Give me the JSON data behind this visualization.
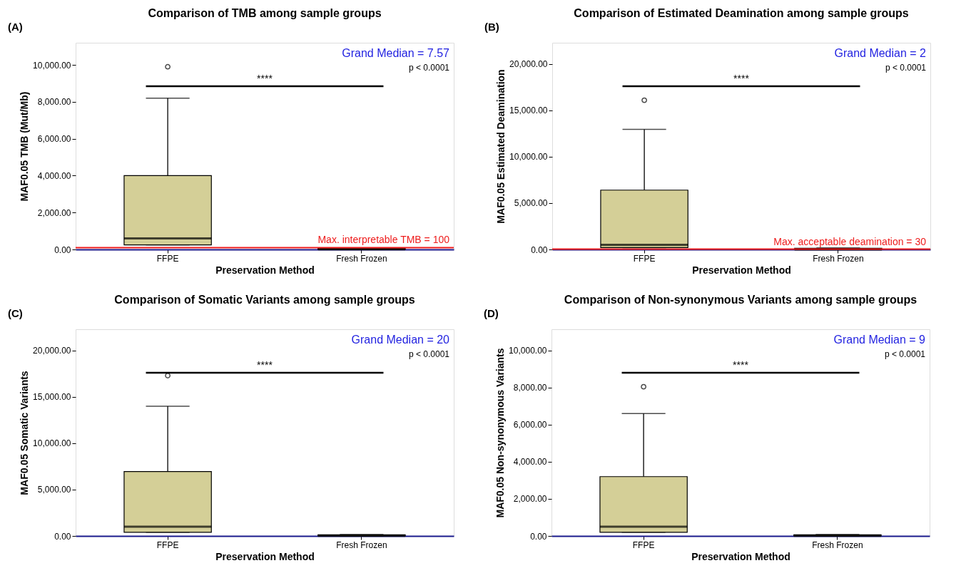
{
  "chart_data": [
    {
      "type": "box",
      "title": "Comparison of TMB among sample groups",
      "xlabel": "Preservation Method",
      "ylabel": "MAF0.05 TMB (Mut/Mb)",
      "categories": [
        "FFPE",
        "Fresh Frozen"
      ],
      "color": "#d4cf97",
      "boxes": [
        {
          "low": 250,
          "q1": 250,
          "median": 600,
          "q3": 4000,
          "high": 8200,
          "outliers": [
            9900
          ]
        },
        {
          "low": 0,
          "q1": 0,
          "median": 5,
          "q3": 60,
          "high": 80
        }
      ],
      "ylim": [
        0,
        11200
      ],
      "yticks": [
        {
          "value": 0,
          "label": "0.00"
        },
        {
          "value": 2000,
          "label": "2,000.00"
        },
        {
          "value": 4000,
          "label": "4,000.00"
        },
        {
          "value": 6000,
          "label": "6,000.00"
        },
        {
          "value": 8000,
          "label": "8,000.00"
        },
        {
          "value": 10000,
          "label": "10,000.00"
        }
      ],
      "ref_lines": [
        {
          "axis": "y",
          "value": 100,
          "label": "Max. interpretable TMB = 100",
          "color": "#ee1c1c"
        }
      ],
      "annotations": [
        "(A)",
        "Grand Median = 7.57",
        "p < 0.0001",
        "****"
      ]
    },
    {
      "type": "box",
      "title": "Comparison of Estimated Deamination among sample groups",
      "xlabel": "Preservation Method",
      "ylabel": "MAF0.05 Estimated Deamination",
      "categories": [
        "FFPE",
        "Fresh Frozen"
      ],
      "color": "#d4cf97",
      "boxes": [
        {
          "low": 200,
          "q1": 200,
          "median": 500,
          "q3": 6400,
          "high": 12950,
          "outliers": [
            16100
          ]
        },
        {
          "low": 0,
          "q1": 0,
          "median": 2,
          "q3": 120,
          "high": 150
        }
      ],
      "ylim": [
        0,
        22300
      ],
      "yticks": [
        {
          "value": 0,
          "label": "0.00"
        },
        {
          "value": 5000,
          "label": "5,000.00"
        },
        {
          "value": 10000,
          "label": "10,000.00"
        },
        {
          "value": 15000,
          "label": "15,000.00"
        },
        {
          "value": 20000,
          "label": "20,000.00"
        }
      ],
      "ref_lines": [
        {
          "axis": "y",
          "value": 30,
          "label": "Max. acceptable deamination = 30",
          "color": "#ee1c1c"
        }
      ],
      "annotations": [
        "(B)",
        "Grand Median = 2",
        "p < 0.0001",
        "****"
      ]
    },
    {
      "type": "box",
      "title": "Comparison of Somatic Variants among sample groups",
      "xlabel": "Preservation Method",
      "ylabel": "MAF0.05 Somatic Variants",
      "categories": [
        "FFPE",
        "Fresh Frozen"
      ],
      "color": "#d4cf97",
      "boxes": [
        {
          "low": 400,
          "q1": 400,
          "median": 1000,
          "q3": 6950,
          "high": 14000,
          "outliers": [
            17300
          ]
        },
        {
          "low": 0,
          "q1": 0,
          "median": 15,
          "q3": 120,
          "high": 150
        }
      ],
      "ylim": [
        0,
        22300
      ],
      "yticks": [
        {
          "value": 0,
          "label": "0.00"
        },
        {
          "value": 5000,
          "label": "5,000.00"
        },
        {
          "value": 10000,
          "label": "10,000.00"
        },
        {
          "value": 15000,
          "label": "15,000.00"
        },
        {
          "value": 20000,
          "label": "20,000.00"
        }
      ],
      "annotations": [
        "(C)",
        "Grand Median = 20",
        "p < 0.0001",
        "****"
      ]
    },
    {
      "type": "box",
      "title": "Comparison of Non-synonymous Variants among sample groups",
      "xlabel": "Preservation Method",
      "ylabel": "MAF0.05 Non-synonymous Variants",
      "categories": [
        "FFPE",
        "Fresh Frozen"
      ],
      "color": "#d4cf97",
      "boxes": [
        {
          "low": 200,
          "q1": 200,
          "median": 500,
          "q3": 3200,
          "high": 6600,
          "outliers": [
            8050
          ]
        },
        {
          "low": 0,
          "q1": 0,
          "median": 5,
          "q3": 60,
          "high": 80
        }
      ],
      "ylim": [
        0,
        11150
      ],
      "yticks": [
        {
          "value": 0,
          "label": "0.00"
        },
        {
          "value": 2000,
          "label": "2,000.00"
        },
        {
          "value": 4000,
          "label": "4,000.00"
        },
        {
          "value": 6000,
          "label": "6,000.00"
        },
        {
          "value": 8000,
          "label": "8,000.00"
        },
        {
          "value": 10000,
          "label": "10,000.00"
        }
      ],
      "annotations": [
        "(D)",
        "Grand Median = 9",
        "p < 0.0001",
        "****"
      ]
    }
  ]
}
